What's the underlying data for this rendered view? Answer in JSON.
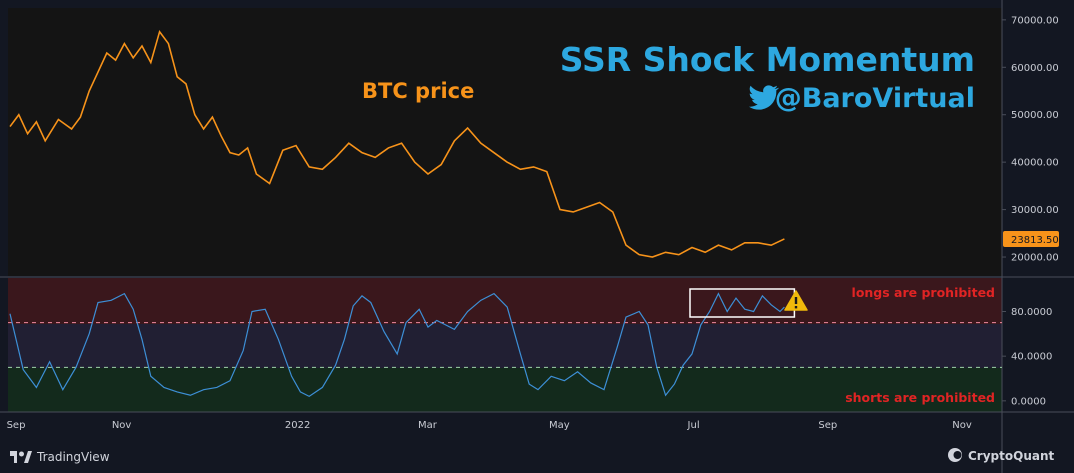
{
  "annotations": {
    "title": "SSR Shock Momentum",
    "handle": "@BaroVirtual",
    "btc_label": "BTC price",
    "longs_prohibited": "longs are prohibited",
    "shorts_prohibited": "shorts are prohibited"
  },
  "footer": {
    "left_brand": "TradingView",
    "right_brand": "CryptoQuant"
  },
  "colors": {
    "background": "#131722",
    "price_line": "#f7931a",
    "oscillator_line": "#3d8fd6",
    "title": "#2da8e0",
    "upper_zone": "#3a171c",
    "mid_zone": "#211f33",
    "lower_zone": "#132a1c",
    "warning_label": "#e02424",
    "last_price_badge": "#f7931a"
  },
  "chart_data": [
    {
      "type": "line",
      "name": "price-panel",
      "series_label": "BTC price",
      "y_ticks": [
        20000,
        30000,
        40000,
        50000,
        60000,
        70000
      ],
      "y_tick_labels": [
        "20000.00",
        "30000.00",
        "40000.00",
        "50000.00",
        "60000.00",
        "70000.00"
      ],
      "ylim": [
        16000,
        72500
      ],
      "last_value_label": "23813.50",
      "last_value": 23813.5,
      "x": [
        0,
        4,
        8,
        12,
        16,
        22,
        28,
        32,
        36,
        40,
        44,
        48,
        52,
        56,
        60,
        64,
        68,
        72,
        76,
        80,
        84,
        88,
        92,
        96,
        100,
        104,
        108,
        112,
        118,
        124,
        130,
        136,
        142,
        148,
        154,
        160,
        166,
        172,
        178,
        184,
        190,
        196,
        202,
        208,
        214,
        220,
        226,
        232,
        238,
        244,
        250,
        256,
        262,
        268,
        274,
        280,
        286,
        292,
        298,
        304,
        310,
        316,
        322,
        328,
        334,
        340,
        346,
        352
      ],
      "values": [
        47500,
        50000,
        46000,
        48500,
        44500,
        49000,
        47000,
        49500,
        55000,
        59000,
        63000,
        61500,
        65000,
        62000,
        64500,
        61000,
        67500,
        65000,
        58000,
        56500,
        50000,
        47000,
        49500,
        45500,
        42000,
        41500,
        43000,
        37500,
        35500,
        42500,
        43500,
        39000,
        38500,
        41000,
        44000,
        42000,
        41000,
        43000,
        44000,
        40000,
        37500,
        39500,
        44500,
        47200,
        44000,
        42000,
        40000,
        38500,
        39000,
        38000,
        30000,
        29500,
        30500,
        31500,
        29500,
        22500,
        20500,
        20000,
        21000,
        20500,
        22000,
        21000,
        22500,
        21500,
        23000,
        23000,
        22500,
        23813.5
      ]
    },
    {
      "type": "line",
      "name": "oscillator-panel",
      "series_label": "",
      "y_ticks": [
        0,
        40,
        80
      ],
      "y_tick_labels": [
        "0.0000",
        "40.0000",
        "80.0000"
      ],
      "ylim": [
        -10,
        110
      ],
      "upper_threshold": 70,
      "lower_threshold": 30,
      "x_ticks": [
        0,
        48,
        128,
        187,
        247,
        308,
        369,
        430
      ],
      "x_tick_labels": [
        "Sep",
        "Nov",
        "2022",
        "Mar",
        "May",
        "Jul",
        "Sep",
        "Nov"
      ],
      "x": [
        0,
        6,
        12,
        18,
        24,
        30,
        36,
        40,
        46,
        52,
        56,
        60,
        64,
        70,
        76,
        82,
        88,
        94,
        100,
        106,
        110,
        116,
        122,
        128,
        132,
        136,
        142,
        148,
        152,
        156,
        160,
        164,
        170,
        176,
        180,
        186,
        190,
        194,
        198,
        202,
        208,
        214,
        220,
        226,
        232,
        236,
        240,
        246,
        252,
        258,
        264,
        270,
        276,
        280,
        286,
        290,
        294,
        298,
        302,
        306,
        310,
        314,
        318,
        322,
        326,
        330,
        334,
        338,
        342,
        346,
        350,
        352
      ],
      "values": [
        78,
        28,
        12,
        35,
        10,
        30,
        60,
        88,
        90,
        96,
        82,
        55,
        22,
        12,
        8,
        5,
        10,
        12,
        18,
        45,
        80,
        82,
        55,
        22,
        8,
        4,
        12,
        32,
        55,
        85,
        94,
        88,
        62,
        42,
        70,
        82,
        66,
        72,
        68,
        64,
        80,
        90,
        96,
        84,
        42,
        15,
        10,
        22,
        18,
        26,
        16,
        10,
        48,
        75,
        80,
        68,
        30,
        5,
        15,
        32,
        42,
        68,
        80,
        96,
        80,
        92,
        82,
        80,
        94,
        86,
        80,
        84
      ]
    }
  ],
  "highlight_box_range": [
    310,
    352
  ]
}
